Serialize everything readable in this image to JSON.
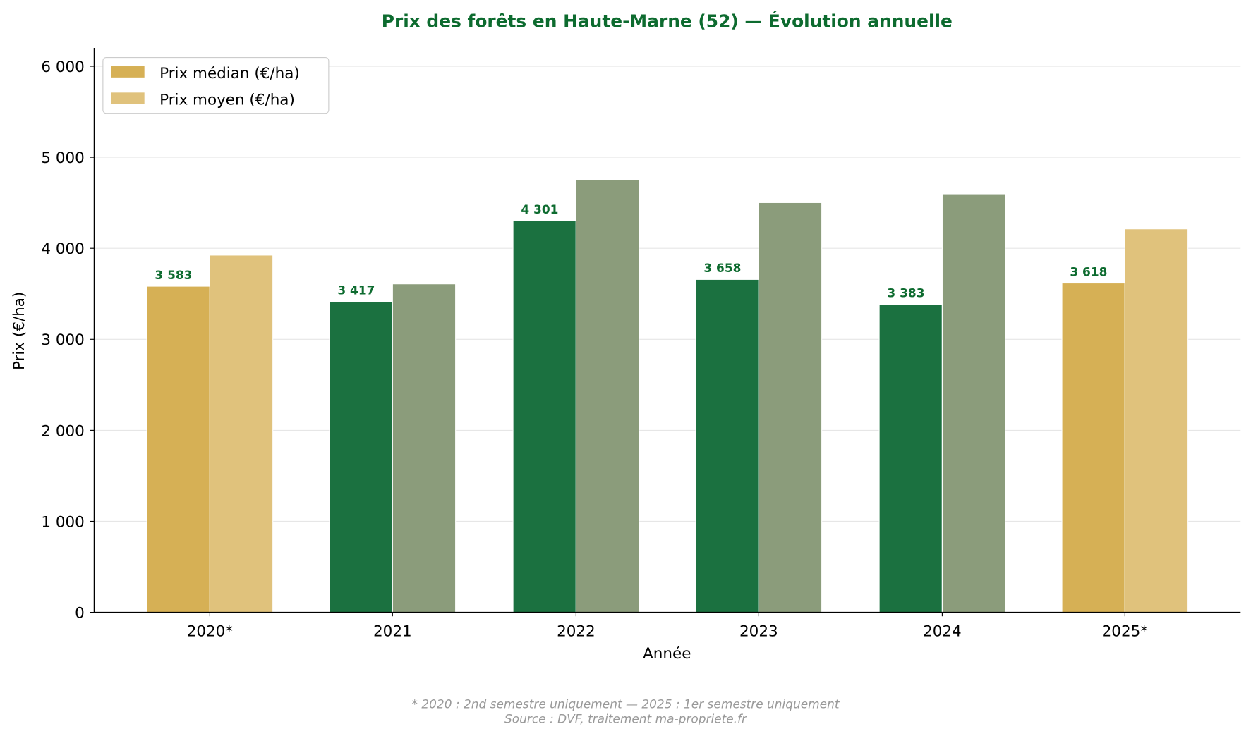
{
  "chart_data": {
    "type": "bar",
    "title": "Prix des forêts en Haute-Marne (52) — Évolution annuelle",
    "xlabel": "Année",
    "ylabel": "Prix (€/ha)",
    "ylim": [
      0,
      6200
    ],
    "yticks": [
      0,
      1000,
      2000,
      3000,
      4000,
      5000,
      6000
    ],
    "ytick_labels": [
      "0",
      "1 000",
      "2 000",
      "3 000",
      "4 000",
      "5 000",
      "6 000"
    ],
    "grid": "horizontal",
    "legend_position": "top-left",
    "categories": [
      "2020*",
      "2021",
      "2022",
      "2023",
      "2024",
      "2025*"
    ],
    "partial_years": [
      true,
      false,
      false,
      false,
      false,
      true
    ],
    "series": [
      {
        "name": "Prix médian (€/ha)",
        "values": [
          3583,
          3417,
          4301,
          3658,
          3383,
          3618
        ],
        "data_labels": [
          "3 583",
          "3 417",
          "4 301",
          "3 658",
          "3 383",
          "3 618"
        ],
        "color": "#1b7140",
        "partial_color": "#d6b055"
      },
      {
        "name": "Prix moyen (€/ha)",
        "values": [
          3925,
          3609,
          4756,
          4502,
          4598,
          4213
        ],
        "color": "#8b9c7b",
        "partial_color": "#e0c27c"
      }
    ],
    "footnote": "* 2020 : 2nd semestre uniquement — 2025 : 1er semestre uniquement",
    "source": "Source : DVF, traitement ma-propriete.fr"
  },
  "colors": {
    "title": "#0d6b2f",
    "label_text": "#0d6b2f",
    "footnote": "#999999"
  }
}
